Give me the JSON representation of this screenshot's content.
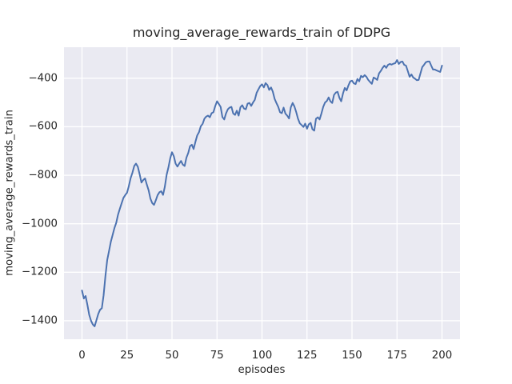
{
  "chart_data": {
    "type": "line",
    "title": "moving_average_rewards_train of DDPG",
    "xlabel": "episodes",
    "ylabel": "moving_average_rewards_train",
    "x_start": 0,
    "x_step": 1,
    "xlim": [
      -10,
      210
    ],
    "ylim": [
      -1476,
      -272
    ],
    "x_ticks": [
      0,
      25,
      50,
      75,
      100,
      125,
      150,
      175,
      200
    ],
    "x_tick_labels": [
      "0",
      "25",
      "50",
      "75",
      "100",
      "125",
      "150",
      "175",
      "200"
    ],
    "y_ticks": [
      -1400,
      -1200,
      -1000,
      -800,
      -600,
      -400
    ],
    "y_tick_labels": [
      "−1400",
      "−1200",
      "−1000",
      "−800",
      "−600",
      "−400"
    ],
    "grid": true,
    "legend": null,
    "style": {
      "figure_bg": "#ffffff",
      "axes_bg": "#eaeaf2",
      "grid_color": "#ffffff",
      "text_color": "#262626",
      "line_color": "#4c72b0",
      "line_width": 2,
      "grid_width": 1.3
    },
    "series": [
      {
        "name": "moving_average_rewards_train",
        "color": "#4c72b0",
        "values": [
          -1275,
          -1308,
          -1298,
          -1335,
          -1375,
          -1400,
          -1415,
          -1423,
          -1398,
          -1372,
          -1355,
          -1348,
          -1295,
          -1215,
          -1150,
          -1112,
          -1075,
          -1046,
          -1018,
          -996,
          -963,
          -938,
          -916,
          -893,
          -882,
          -872,
          -845,
          -812,
          -790,
          -762,
          -752,
          -765,
          -795,
          -830,
          -820,
          -813,
          -838,
          -862,
          -896,
          -915,
          -922,
          -903,
          -882,
          -870,
          -866,
          -881,
          -848,
          -798,
          -768,
          -730,
          -705,
          -722,
          -752,
          -764,
          -752,
          -741,
          -756,
          -762,
          -728,
          -708,
          -680,
          -674,
          -692,
          -662,
          -636,
          -622,
          -598,
          -588,
          -567,
          -558,
          -554,
          -561,
          -544,
          -540,
          -515,
          -495,
          -506,
          -518,
          -560,
          -570,
          -545,
          -528,
          -521,
          -518,
          -545,
          -551,
          -534,
          -554,
          -520,
          -511,
          -525,
          -528,
          -505,
          -502,
          -514,
          -500,
          -489,
          -460,
          -446,
          -432,
          -425,
          -438,
          -420,
          -428,
          -448,
          -438,
          -455,
          -485,
          -502,
          -518,
          -540,
          -544,
          -521,
          -546,
          -554,
          -566,
          -520,
          -502,
          -516,
          -540,
          -567,
          -586,
          -593,
          -601,
          -587,
          -608,
          -590,
          -584,
          -610,
          -616,
          -567,
          -561,
          -570,
          -545,
          -518,
          -500,
          -494,
          -479,
          -495,
          -502,
          -469,
          -459,
          -456,
          -481,
          -495,
          -462,
          -440,
          -450,
          -430,
          -413,
          -410,
          -421,
          -424,
          -403,
          -413,
          -390,
          -396,
          -387,
          -394,
          -407,
          -415,
          -423,
          -397,
          -401,
          -407,
          -380,
          -370,
          -357,
          -348,
          -357,
          -345,
          -341,
          -344,
          -340,
          -338,
          -325,
          -341,
          -333,
          -331,
          -345,
          -348,
          -371,
          -394,
          -384,
          -397,
          -402,
          -408,
          -407,
          -381,
          -354,
          -345,
          -334,
          -331,
          -331,
          -348,
          -364,
          -364,
          -368,
          -371,
          -374,
          -348
        ]
      }
    ]
  }
}
